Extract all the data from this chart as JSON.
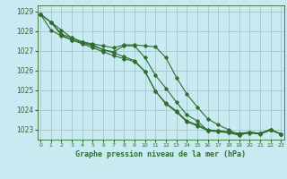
{
  "title": "Graphe pression niveau de la mer (hPa)",
  "bg_color": "#c8eaf0",
  "grid_color": "#a0c8d0",
  "line_color": "#2d6e2d",
  "xlim": [
    -0.3,
    23.3
  ],
  "ylim": [
    1022.5,
    1029.3
  ],
  "yticks": [
    1023,
    1024,
    1025,
    1026,
    1027,
    1028,
    1029
  ],
  "xticks": [
    0,
    1,
    2,
    3,
    4,
    5,
    6,
    7,
    8,
    9,
    10,
    11,
    12,
    13,
    14,
    15,
    16,
    17,
    18,
    19,
    20,
    21,
    22,
    23
  ],
  "line1": [
    1028.85,
    1028.45,
    1027.85,
    1027.65,
    1027.45,
    1027.3,
    1027.05,
    1026.95,
    1027.25,
    1027.25,
    1026.65,
    1025.75,
    1025.1,
    1024.4,
    1023.75,
    1023.45,
    1022.95,
    1022.95,
    1022.85,
    1022.72,
    1022.88,
    1022.82,
    1023.02,
    1022.78
  ],
  "line2": [
    1028.85,
    1028.05,
    1027.75,
    1027.55,
    1027.35,
    1027.15,
    1026.95,
    1026.75,
    1026.6,
    1026.45,
    1025.95,
    1024.95,
    1024.35,
    1023.95,
    1023.45,
    1023.25,
    1023.0,
    1022.95,
    1022.9,
    1022.82,
    1022.88,
    1022.8,
    1022.98,
    1022.78
  ],
  "line3": [
    1028.85,
    1028.45,
    1028.05,
    1027.65,
    1027.45,
    1027.35,
    1027.25,
    1027.15,
    1027.3,
    1027.3,
    1027.25,
    1027.2,
    1026.65,
    1025.65,
    1024.8,
    1024.15,
    1023.55,
    1023.25,
    1023.0,
    1022.72,
    1022.88,
    1022.8,
    1023.02,
    1022.78
  ],
  "line4": [
    1028.85,
    1028.45,
    1027.8,
    1027.55,
    1027.4,
    1027.25,
    1027.05,
    1026.9,
    1026.7,
    1026.5,
    1025.95,
    1024.95,
    1024.3,
    1023.9,
    1023.4,
    1023.2,
    1022.95,
    1022.9,
    1022.85,
    1022.78,
    1022.83,
    1022.78,
    1022.98,
    1022.78
  ]
}
